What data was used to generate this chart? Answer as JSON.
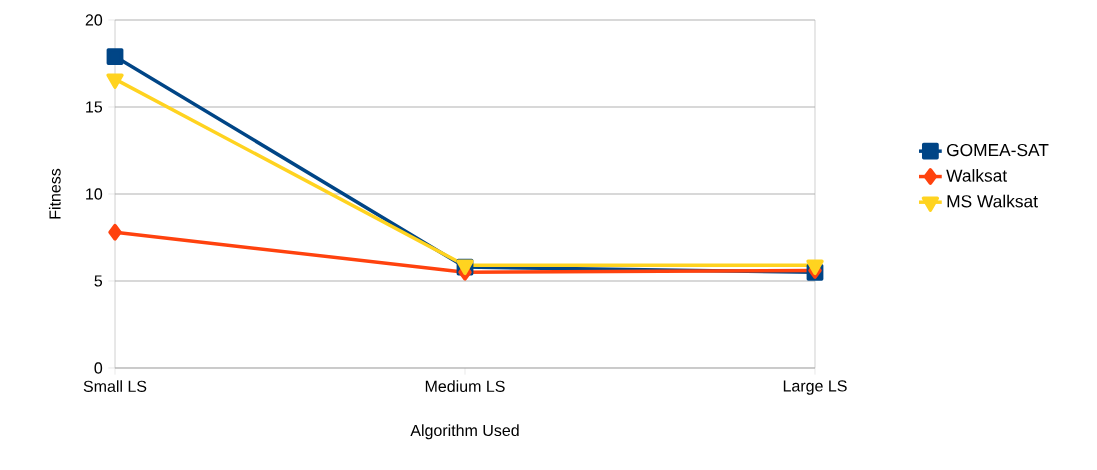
{
  "chart_data": {
    "type": "line",
    "xlabel": "Algorithm Used",
    "ylabel": "Fitness",
    "categories": [
      "Small LS",
      "Medium LS",
      "Large LS"
    ],
    "series": [
      {
        "name": "GOMEA-SAT",
        "color": "#004586",
        "marker": "square",
        "values": [
          17.9,
          5.8,
          5.5
        ]
      },
      {
        "name": "Walksat",
        "color": "#ff420e",
        "marker": "diamond",
        "values": [
          7.8,
          5.5,
          5.6
        ]
      },
      {
        "name": "MS Walksat",
        "color": "#ffd320",
        "marker": "triangle",
        "values": [
          16.6,
          5.9,
          5.9
        ]
      }
    ],
    "ylim": [
      0,
      20
    ],
    "yticks": [
      0,
      5,
      10,
      15,
      20
    ],
    "grid": "y",
    "legend": "right"
  }
}
